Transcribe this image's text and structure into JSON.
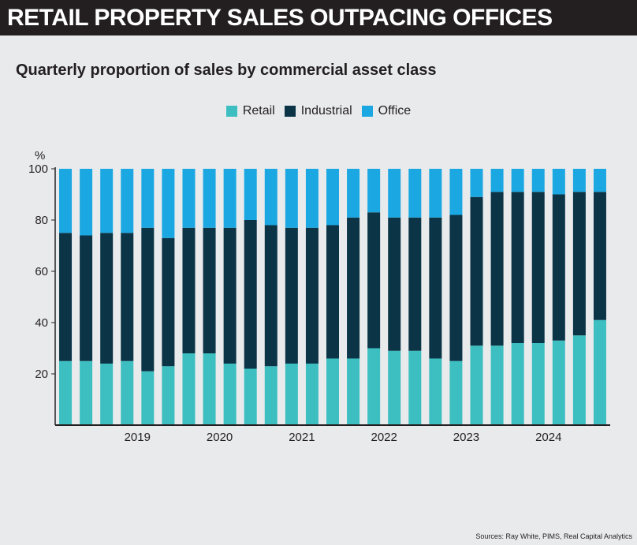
{
  "banner_title": "RETAIL PROPERTY SALES OUTPACING OFFICES",
  "subtitle": "Quarterly proportion of sales by commercial asset class",
  "source": "Sources: Ray White, PIMS, Real Capital Analytics",
  "colors": {
    "retail": "#3dbfc1",
    "industrial": "#0b3447",
    "office": "#1ba8e2",
    "background": "#e9eaec",
    "banner": "#231f20"
  },
  "chart_data": {
    "type": "bar",
    "stacked": true,
    "ylabel": "%",
    "ylim": [
      0,
      100
    ],
    "yticks": [
      20,
      40,
      60,
      80,
      100
    ],
    "grid": false,
    "legend": "top-center",
    "xtick_labels": [
      {
        "label": "2019",
        "index": 3.5
      },
      {
        "label": "2020",
        "index": 7.5
      },
      {
        "label": "2021",
        "index": 11.5
      },
      {
        "label": "2022",
        "index": 15.5
      },
      {
        "label": "2023",
        "index": 19.5
      },
      {
        "label": "2024",
        "index": 23.5
      }
    ],
    "series": [
      {
        "name": "Retail",
        "color": "#3dbfc1",
        "values": [
          25,
          25,
          24,
          25,
          21,
          23,
          28,
          28,
          24,
          22,
          23,
          24,
          24,
          26,
          26,
          30,
          29,
          29,
          26,
          25,
          31,
          31,
          32,
          32,
          33,
          35,
          41
        ]
      },
      {
        "name": "Industrial",
        "color": "#0b3447",
        "values": [
          50,
          49,
          51,
          50,
          56,
          50,
          49,
          49,
          53,
          58,
          55,
          53,
          53,
          52,
          55,
          53,
          52,
          52,
          55,
          57,
          58,
          60,
          59,
          59,
          57,
          56,
          50
        ]
      },
      {
        "name": "Office",
        "color": "#1ba8e2",
        "values": [
          25,
          26,
          25,
          25,
          23,
          27,
          23,
          23,
          23,
          20,
          22,
          23,
          23,
          22,
          19,
          17,
          19,
          19,
          19,
          18,
          11,
          9,
          9,
          9,
          10,
          9,
          9
        ]
      }
    ]
  }
}
